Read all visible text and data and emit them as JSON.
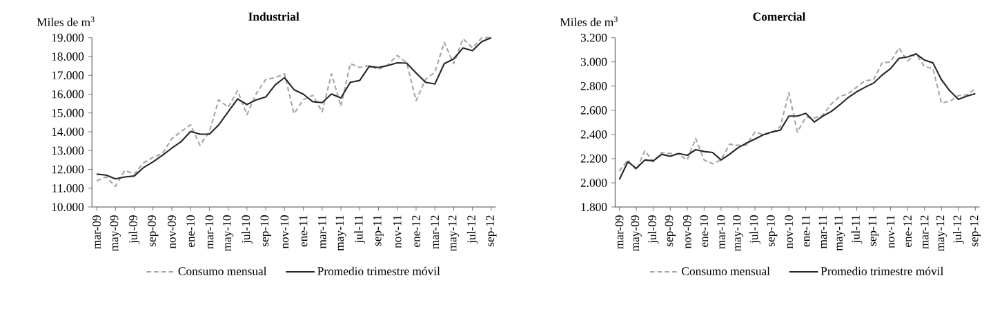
{
  "chart_data": [
    {
      "type": "line",
      "title": "**Industrial**",
      "ylabel": "Miles de m$^{3}$",
      "categories": [
        "mar-09",
        null,
        "may-09",
        null,
        "jul-09",
        null,
        "sep-09",
        null,
        "nov-09",
        null,
        "ene-10",
        null,
        "mar-10",
        null,
        "may-10",
        null,
        "jul-10",
        null,
        "sep-10",
        null,
        "nov-10",
        null,
        "ene-11",
        null,
        "mar-11",
        null,
        "may-11",
        null,
        "jul-11",
        null,
        "sep-11",
        null,
        "nov-11",
        null,
        "ene-12",
        null,
        "mar-12",
        null,
        "may-12",
        null,
        "jul-12",
        null,
        "sep-12"
      ],
      "series": [
        {
          "name": "Consumo mensual",
          "color": "#a6a6a6",
          "line_style": "dashed",
          "values": [
            11400,
            11600,
            11100,
            11950,
            11750,
            12350,
            12640,
            12840,
            13630,
            14020,
            14370,
            13280,
            14020,
            15700,
            15300,
            16190,
            14910,
            16040,
            16780,
            16880,
            17080,
            14960,
            15700,
            15940,
            15060,
            17080,
            15350,
            17620,
            17420,
            17520,
            17320,
            17570,
            18060,
            17670,
            15650,
            16780,
            17170,
            18750,
            17620,
            18950,
            18460,
            19000,
            19000
          ]
        },
        {
          "name": "Promedio trimestre móvil",
          "color": "#262626",
          "line_style": "solid",
          "values": [
            11750,
            11700,
            11500,
            11600,
            11650,
            12100,
            12400,
            12750,
            13130,
            13480,
            14020,
            13870,
            13870,
            14370,
            15060,
            15750,
            15450,
            15700,
            15850,
            16490,
            16880,
            16240,
            16000,
            15600,
            15550,
            16010,
            15800,
            16630,
            16730,
            17470,
            17420,
            17520,
            17670,
            17650,
            17130,
            16630,
            16540,
            17620,
            17870,
            18460,
            18310,
            18800,
            19000
          ]
        }
      ],
      "ylim": [
        10000,
        19000
      ],
      "yticks": [
        {
          "value": 10000,
          "label": "10.000"
        },
        {
          "value": 11000,
          "label": "11.000"
        },
        {
          "value": 12000,
          "label": "12.000"
        },
        {
          "value": 13000,
          "label": "13.000"
        },
        {
          "value": 14000,
          "label": "14.000"
        },
        {
          "value": 15000,
          "label": "15.000"
        },
        {
          "value": 16000,
          "label": "16.000"
        },
        {
          "value": 17000,
          "label": "17.000"
        },
        {
          "value": 18000,
          "label": "18.000"
        },
        {
          "value": 19000,
          "label": "19.000"
        }
      ],
      "legend": "bottom"
    },
    {
      "type": "line",
      "title": "**Comercial**",
      "ylabel": "Miles de m$^{3}$",
      "categories": [
        "mar-09",
        null,
        "may-09",
        null,
        "jul-09",
        null,
        "sep-09",
        null,
        "nov-09",
        null,
        "ene-10",
        null,
        "mar-10",
        null,
        "may-10",
        null,
        "jul-10",
        null,
        "sep-10",
        null,
        "nov-10",
        null,
        "ene-11",
        null,
        "mar-11",
        null,
        "may-11",
        null,
        "jul-11",
        null,
        "sep-11",
        null,
        "nov-11",
        null,
        "ene-12",
        null,
        "mar-12",
        null,
        "may-12",
        null,
        "jul-12",
        null,
        "sep-12"
      ],
      "series": [
        {
          "name": "Consumo mensual",
          "color": "#a6a6a6",
          "line_style": "dashed",
          "values": [
            2097,
            2189,
            2104,
            2266,
            2174,
            2251,
            2243,
            2236,
            2189,
            2367,
            2189,
            2158,
            2189,
            2320,
            2310,
            2313,
            2421,
            2398,
            2413,
            2467,
            2745,
            2421,
            2544,
            2536,
            2560,
            2652,
            2714,
            2737,
            2791,
            2845,
            2853,
            2992,
            3000,
            3115,
            3007,
            3069,
            2961,
            2945,
            2660,
            2675,
            2722,
            2729,
            2776
          ]
        },
        {
          "name": "Promedio trimestre móvil",
          "color": "#262626",
          "line_style": "solid",
          "values": [
            2027,
            2174,
            2120,
            2189,
            2182,
            2236,
            2220,
            2243,
            2228,
            2274,
            2259,
            2251,
            2189,
            2236,
            2290,
            2328,
            2362,
            2398,
            2421,
            2436,
            2552,
            2552,
            2575,
            2503,
            2552,
            2590,
            2645,
            2706,
            2753,
            2791,
            2825,
            2891,
            2945,
            3030,
            3041,
            3066,
            3015,
            2992,
            2853,
            2760,
            2691,
            2717,
            2737
          ]
        }
      ],
      "ylim": [
        1800,
        3200
      ],
      "yticks": [
        {
          "value": 1800,
          "label": "1.800"
        },
        {
          "value": 2000,
          "label": "2.000"
        },
        {
          "value": 2200,
          "label": "2.200"
        },
        {
          "value": 2400,
          "label": "2.400"
        },
        {
          "value": 2600,
          "label": "2.600"
        },
        {
          "value": 2800,
          "label": "2.800"
        },
        {
          "value": 3000,
          "label": "3.000"
        },
        {
          "value": 3200,
          "label": "3.200"
        }
      ],
      "legend": "bottom"
    }
  ]
}
